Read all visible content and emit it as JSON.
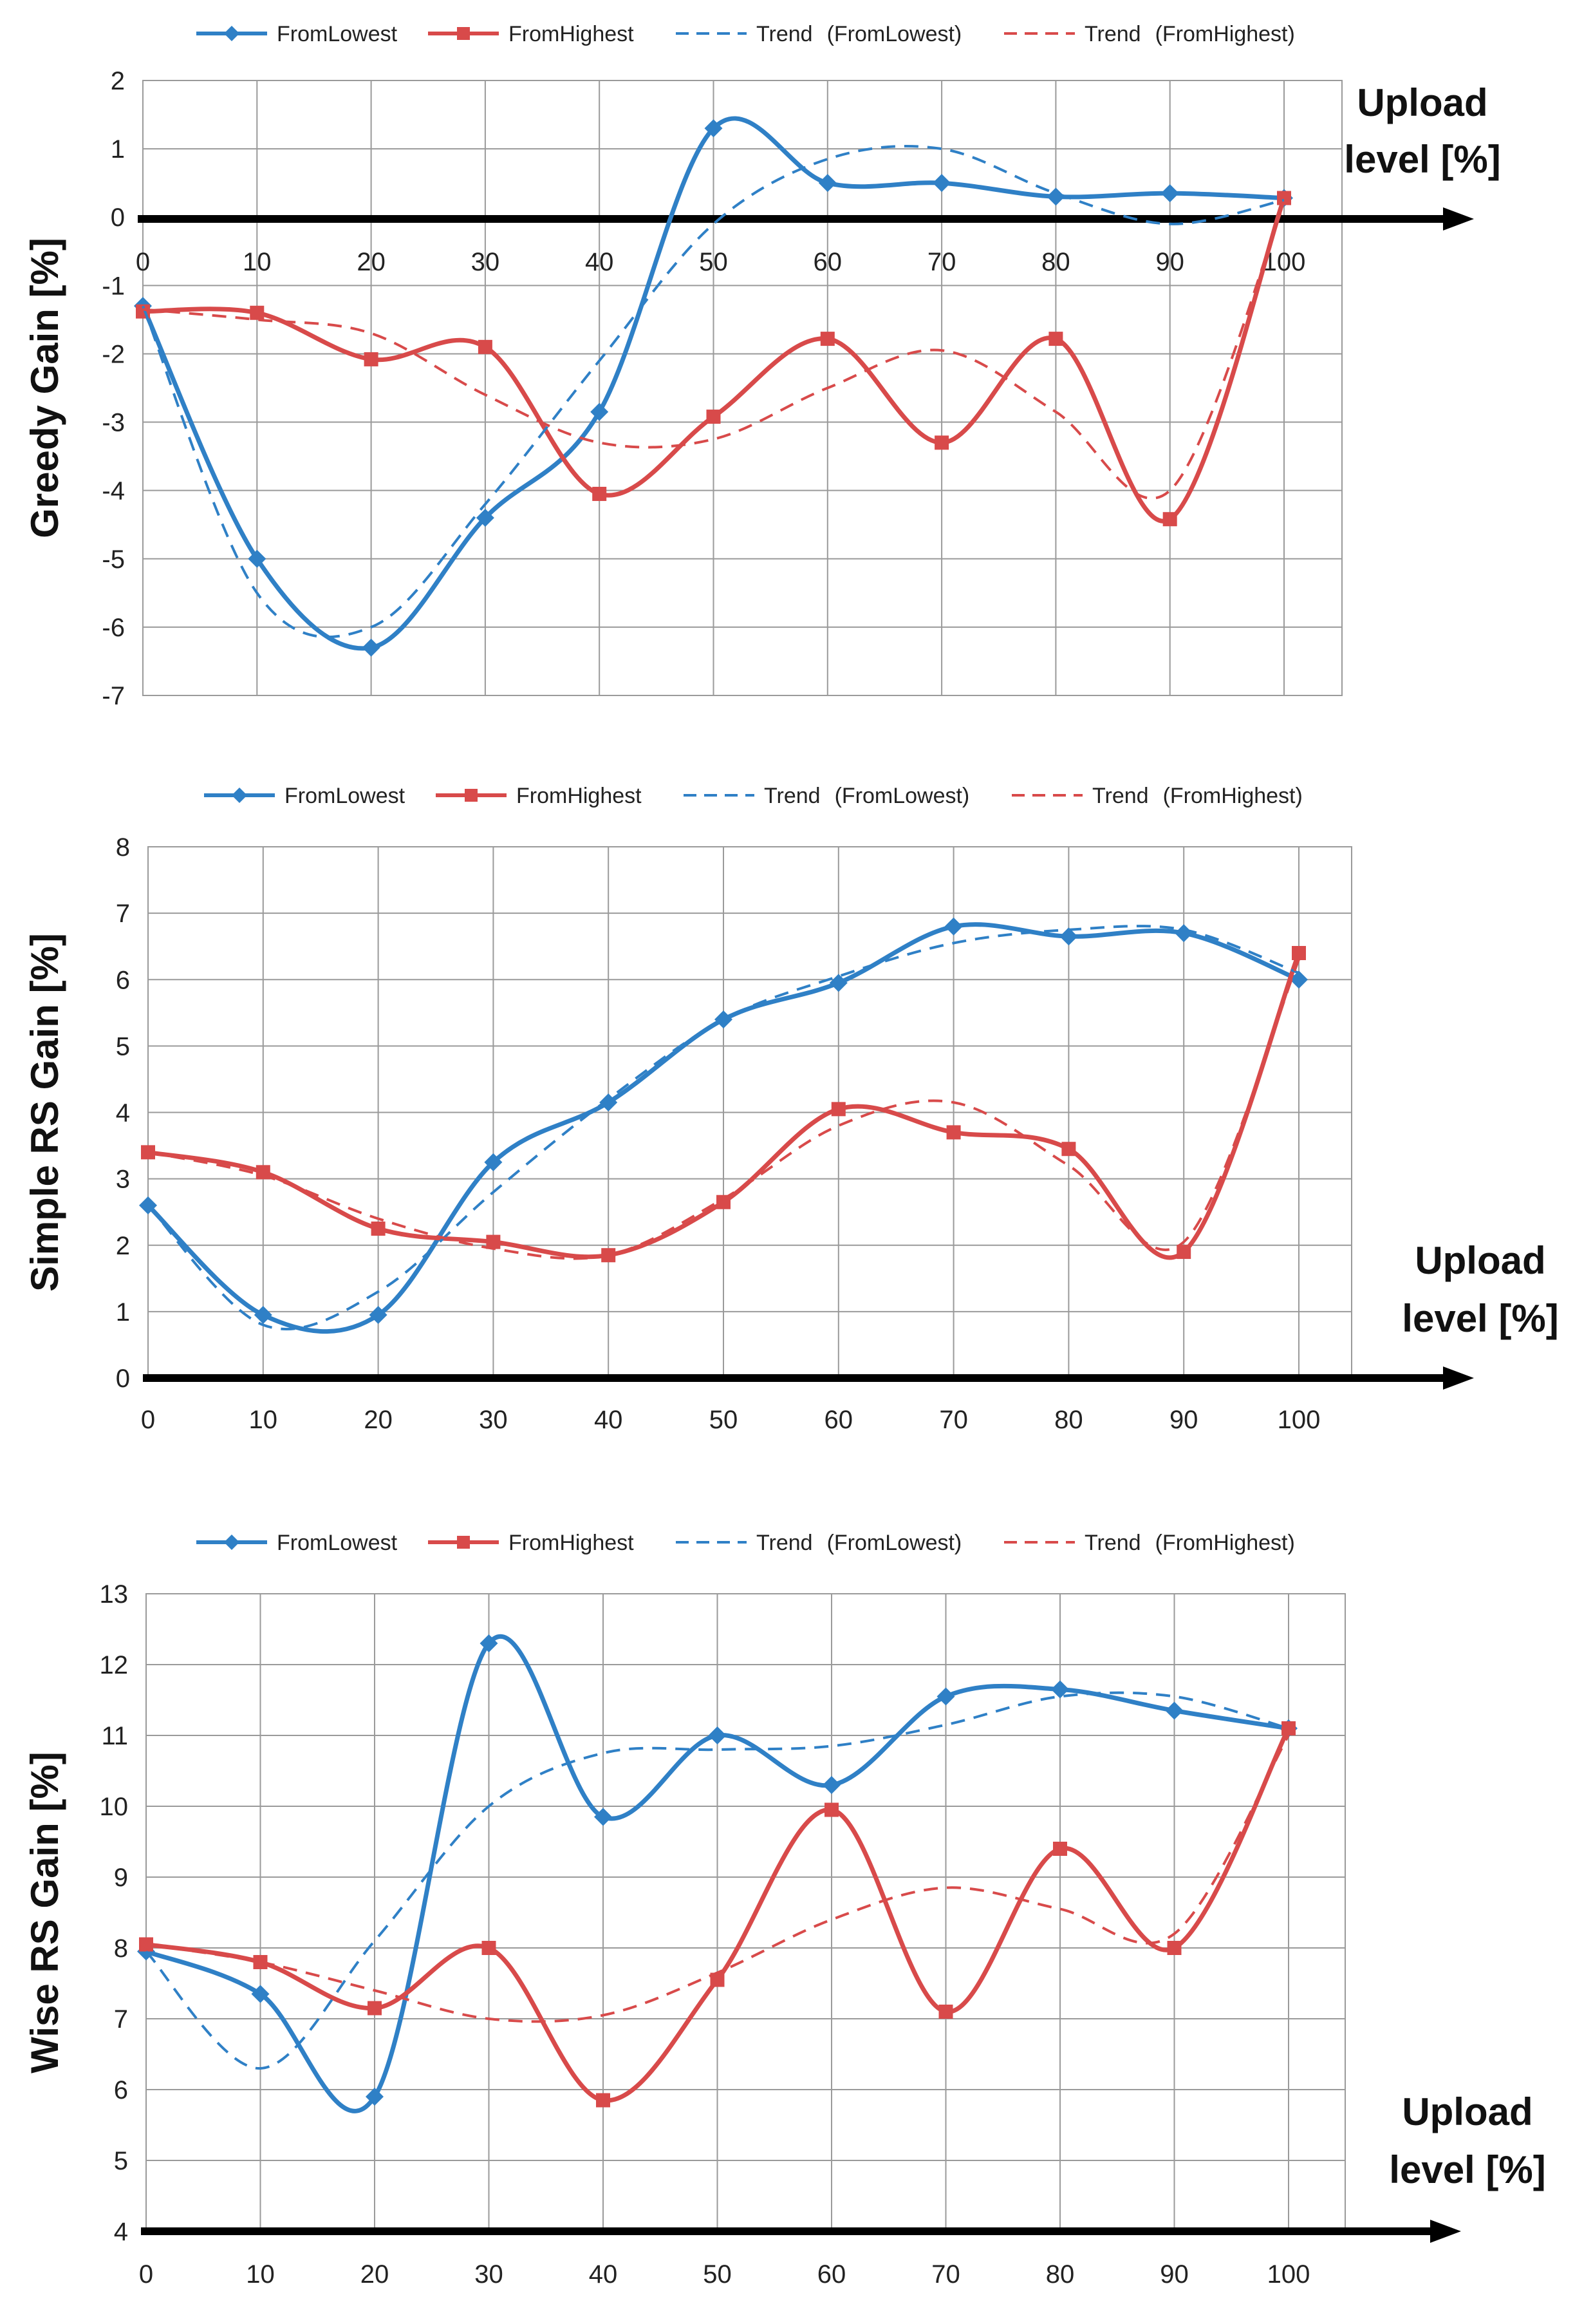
{
  "chart_data": [
    {
      "type": "line",
      "ylabel": "Greedy Gain [%]",
      "xlabel_line1": "Upload",
      "xlabel_line2": "level [%]",
      "x": [
        0,
        10,
        20,
        30,
        40,
        50,
        60,
        70,
        80,
        90,
        100
      ],
      "xlim": [
        0,
        100
      ],
      "ylim": [
        -7,
        2
      ],
      "yticks": [
        2,
        1,
        0,
        -1,
        -2,
        -3,
        -4,
        -5,
        -6,
        -7
      ],
      "grid": true,
      "legend_position": "top",
      "series": [
        {
          "name": "FromLowest",
          "color": "#2f80c6",
          "style": "solid",
          "marker": "diamond",
          "values": [
            -1.3,
            -5.0,
            -6.3,
            -4.4,
            -2.85,
            1.3,
            0.5,
            0.5,
            0.3,
            0.35,
            0.28
          ]
        },
        {
          "name": "FromHighest",
          "color": "#d84a4a",
          "style": "solid",
          "marker": "square",
          "values": [
            -1.38,
            -1.4,
            -2.08,
            -1.9,
            -4.05,
            -2.92,
            -1.78,
            -3.3,
            -1.78,
            -4.42,
            0.28
          ]
        },
        {
          "name": "Trend",
          "legend_suffix": "(FromLowest)",
          "color": "#2f80c6",
          "style": "dashed",
          "values": [
            -1.3,
            -5.5,
            -6.0,
            -4.2,
            -2.1,
            -0.1,
            0.85,
            1.0,
            0.35,
            -0.1,
            0.25
          ]
        },
        {
          "name": "Trend",
          "legend_suffix": "(FromHighest)",
          "color": "#d84a4a",
          "style": "dashed",
          "values": [
            -1.35,
            -1.5,
            -1.7,
            -2.6,
            -3.3,
            -3.25,
            -2.5,
            -1.95,
            -2.85,
            -4.0,
            0.2
          ]
        }
      ]
    },
    {
      "type": "line",
      "ylabel": "Simple RS Gain [%]",
      "xlabel_line1": "Upload",
      "xlabel_line2": "level [%]",
      "x": [
        0,
        10,
        20,
        30,
        40,
        50,
        60,
        70,
        80,
        90,
        100
      ],
      "xlim": [
        0,
        100
      ],
      "ylim": [
        0,
        8
      ],
      "yticks": [
        8,
        7,
        6,
        5,
        4,
        3,
        2,
        1,
        0
      ],
      "grid": true,
      "legend_position": "top",
      "series": [
        {
          "name": "FromLowest",
          "color": "#2f80c6",
          "style": "solid",
          "marker": "diamond",
          "values": [
            2.6,
            0.95,
            0.95,
            3.25,
            4.15,
            5.4,
            5.95,
            6.8,
            6.65,
            6.7,
            6.0
          ]
        },
        {
          "name": "FromHighest",
          "color": "#d84a4a",
          "style": "solid",
          "marker": "square",
          "values": [
            3.4,
            3.1,
            2.25,
            2.05,
            1.85,
            2.65,
            4.05,
            3.7,
            3.45,
            1.9,
            6.4
          ]
        },
        {
          "name": "Trend",
          "legend_suffix": "(FromLowest)",
          "color": "#2f80c6",
          "style": "dashed",
          "values": [
            2.6,
            0.8,
            1.3,
            2.8,
            4.2,
            5.4,
            6.05,
            6.55,
            6.75,
            6.75,
            6.1
          ]
        },
        {
          "name": "Trend",
          "legend_suffix": "(FromHighest)",
          "color": "#d84a4a",
          "style": "dashed",
          "values": [
            3.4,
            3.05,
            2.4,
            1.95,
            1.85,
            2.7,
            3.8,
            4.15,
            3.2,
            2.05,
            6.3
          ]
        }
      ]
    },
    {
      "type": "line",
      "ylabel": "Wise RS Gain [%]",
      "xlabel_line1": "Upload",
      "xlabel_line2": "level [%]",
      "x": [
        0,
        10,
        20,
        30,
        40,
        50,
        60,
        70,
        80,
        90,
        100
      ],
      "xlim": [
        0,
        100
      ],
      "ylim": [
        4,
        13
      ],
      "yticks": [
        13,
        12,
        11,
        10,
        9,
        8,
        7,
        6,
        5,
        4
      ],
      "grid": true,
      "legend_position": "top",
      "series": [
        {
          "name": "FromLowest",
          "color": "#2f80c6",
          "style": "solid",
          "marker": "diamond",
          "values": [
            7.95,
            7.35,
            5.9,
            12.3,
            9.85,
            11.0,
            10.3,
            11.55,
            11.65,
            11.35,
            11.1
          ]
        },
        {
          "name": "FromHighest",
          "color": "#d84a4a",
          "style": "solid",
          "marker": "square",
          "values": [
            8.05,
            7.8,
            7.15,
            8.0,
            5.85,
            7.55,
            9.95,
            7.1,
            9.4,
            8.0,
            11.1
          ]
        },
        {
          "name": "Trend",
          "legend_suffix": "(FromLowest)",
          "color": "#2f80c6",
          "style": "dashed",
          "values": [
            7.95,
            6.3,
            8.1,
            10.0,
            10.75,
            10.8,
            10.85,
            11.15,
            11.55,
            11.55,
            11.1
          ]
        },
        {
          "name": "Trend",
          "legend_suffix": "(FromHighest)",
          "color": "#d84a4a",
          "style": "dashed",
          "values": [
            8.05,
            7.8,
            7.4,
            7.0,
            7.05,
            7.65,
            8.4,
            8.85,
            8.55,
            8.2,
            11.0
          ]
        }
      ]
    }
  ]
}
